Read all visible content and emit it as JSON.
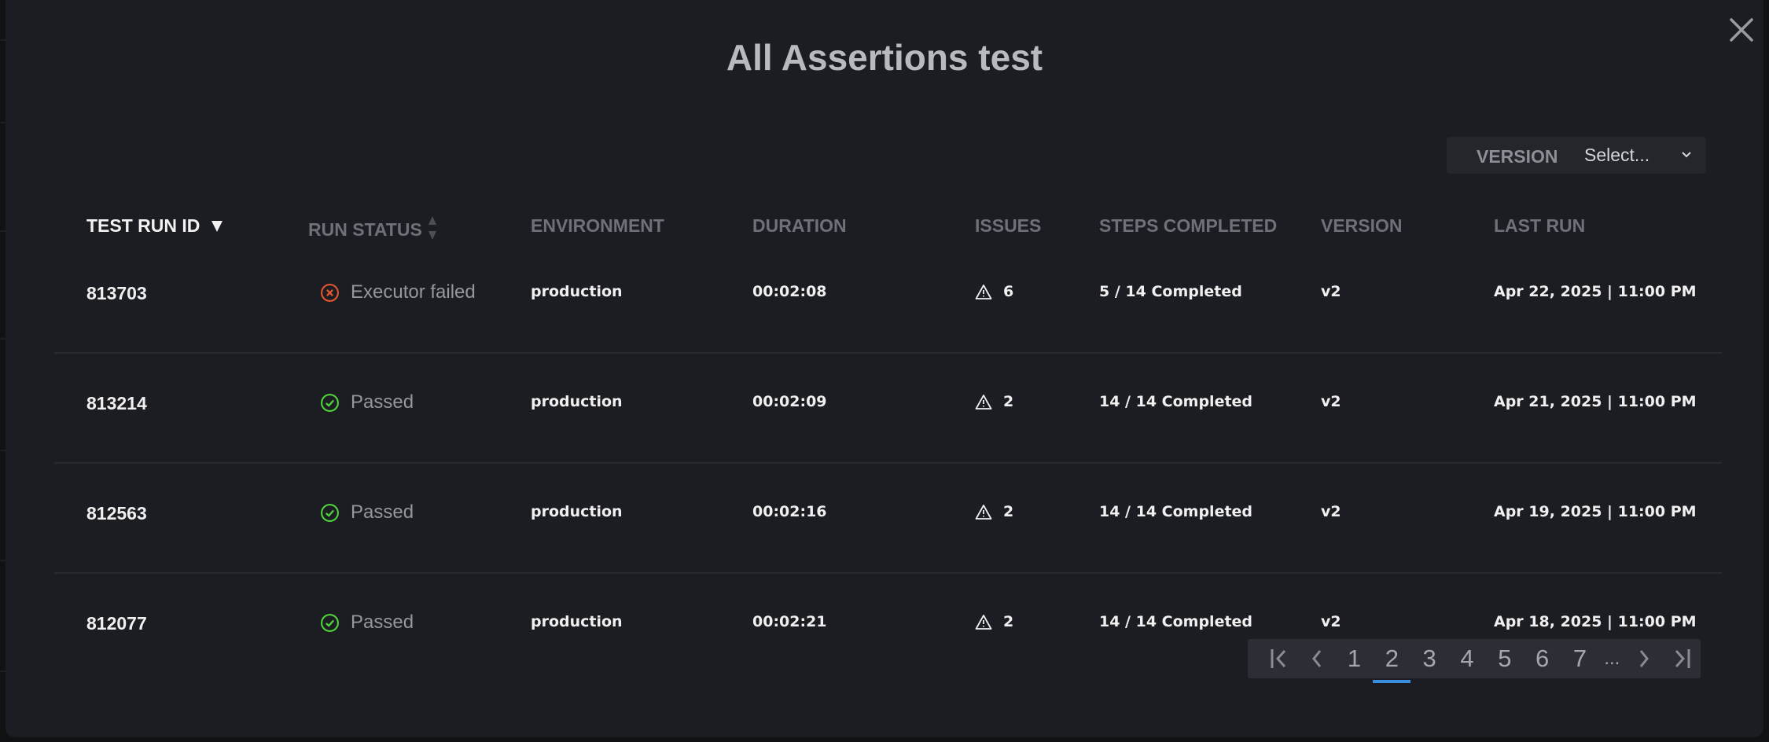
{
  "modal": {
    "title": "All Assertions test"
  },
  "filter": {
    "label": "VERSION",
    "value": "Select..."
  },
  "columns": [
    "TEST RUN ID",
    "RUN STATUS",
    "ENVIRONMENT",
    "DURATION",
    "ISSUES",
    "STEPS COMPLETED",
    "VERSION",
    "LAST RUN"
  ],
  "sort": {
    "column": "TEST RUN ID",
    "direction": "descending"
  },
  "rows": [
    {
      "id": "813703",
      "status": "Executor failed",
      "status_icon": "x-circle-icon",
      "env": "production",
      "duration": "00:02:08",
      "issues": "6",
      "steps": "5 / 14 Completed",
      "version": "v2",
      "last_run": "Apr 22, 2025 | 11:00 PM"
    },
    {
      "id": "813214",
      "status": "Passed",
      "status_icon": "check-circle-icon",
      "env": "production",
      "duration": "00:02:09",
      "issues": "2",
      "steps": "14 / 14 Completed",
      "version": "v2",
      "last_run": "Apr 21, 2025 | 11:00 PM"
    },
    {
      "id": "812563",
      "status": "Passed",
      "status_icon": "check-circle-icon",
      "env": "production",
      "duration": "00:02:16",
      "issues": "2",
      "steps": "14 / 14 Completed",
      "version": "v2",
      "last_run": "Apr 19, 2025 | 11:00 PM"
    },
    {
      "id": "812077",
      "status": "Passed",
      "status_icon": "check-circle-icon",
      "env": "production",
      "duration": "00:02:21",
      "issues": "2",
      "steps": "14 / 14 Completed",
      "version": "v2",
      "last_run": "Apr 18, 2025 | 11:00 PM"
    }
  ],
  "pagination": {
    "pages": [
      "1",
      "2",
      "3",
      "4",
      "5",
      "6",
      "7"
    ],
    "ellipsis": "...",
    "current": "2"
  },
  "colors": {
    "failed": "#e4572e",
    "passed": "#4fd43a",
    "accent": "#3b8de0"
  }
}
